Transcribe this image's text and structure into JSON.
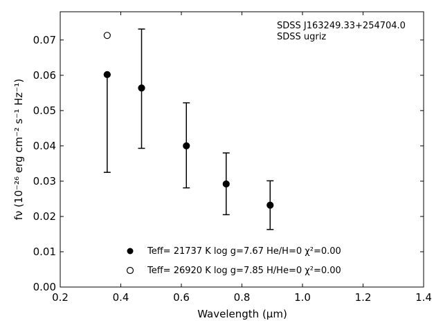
{
  "chart_data": {
    "type": "scatter",
    "xlabel": "Wavelength (μm)",
    "ylabel": "fν (10⁻²⁶ erg cm⁻² s⁻¹ Hz⁻¹)",
    "xlim": [
      0.2,
      1.4
    ],
    "ylim": [
      0.0,
      0.078
    ],
    "xticks": [
      "0.2",
      "0.4",
      "0.6",
      "0.8",
      "1.0",
      "1.2",
      "1.4"
    ],
    "yticks": [
      "0.00",
      "0.01",
      "0.02",
      "0.03",
      "0.04",
      "0.05",
      "0.06",
      "0.07"
    ],
    "grid": false,
    "annotations": [
      "SDSS J163249.33+254704.0",
      "SDSS ugriz"
    ],
    "observed": {
      "x": [
        0.3551,
        0.4686,
        0.6166,
        0.748,
        0.8932
      ],
      "y": [
        0.0602,
        0.0564,
        0.04,
        0.0292,
        0.0232
      ],
      "yerr_low": [
        0.0325,
        0.0393,
        0.0281,
        0.0205,
        0.0163
      ],
      "yerr_high": [
        0.0602,
        0.0731,
        0.0522,
        0.038,
        0.0301
      ]
    },
    "series": [
      {
        "name": "Teff= 21737 K  log g=7.67  He/H=0  χ²=0.00",
        "marker": "filled-circle",
        "x": [
          0.3551,
          0.4686,
          0.6166,
          0.748,
          0.8932
        ],
        "y": [
          0.0602,
          0.0564,
          0.04,
          0.0292,
          0.0232
        ]
      },
      {
        "name": "Teff= 26920 K  log g=7.85  H/He=0  χ²=0.00",
        "marker": "open-circle",
        "x": [
          0.3551
        ],
        "y": [
          0.0713
        ]
      }
    ],
    "legend_position": "lower-center"
  }
}
